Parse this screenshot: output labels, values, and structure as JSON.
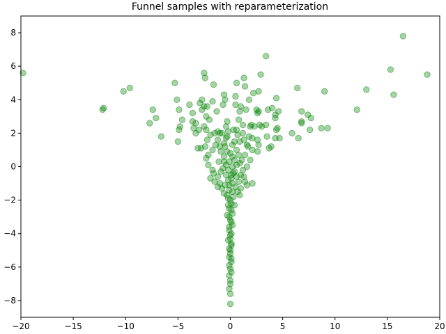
{
  "chart_data": {
    "type": "scatter",
    "title": "Funnel samples with reparameterization",
    "xlabel": "",
    "ylabel": "",
    "xlim": [
      -20,
      20
    ],
    "ylim": [
      -9,
      9
    ],
    "x_ticks": [
      -20,
      -15,
      -10,
      -5,
      0,
      5,
      10,
      15,
      20
    ],
    "x_tick_labels": [
      "−20",
      "−15",
      "−10",
      "−5",
      "0",
      "5",
      "10",
      "15",
      "20"
    ],
    "y_ticks": [
      -8,
      -6,
      -4,
      -2,
      0,
      2,
      4,
      6,
      8
    ],
    "y_tick_labels": [
      "−8",
      "−6",
      "−4",
      "−2",
      "0",
      "2",
      "4",
      "6",
      "8"
    ],
    "grid": false,
    "marker_color": "#008000",
    "marker_alpha": 0.35,
    "series": [
      {
        "points": [
          [
            -19.8,
            5.6
          ],
          [
            16.5,
            7.8
          ],
          [
            15.3,
            5.8
          ],
          [
            18.8,
            5.5
          ],
          [
            15.6,
            4.3
          ],
          [
            13.0,
            4.6
          ],
          [
            12.1,
            3.4
          ],
          [
            9.3,
            2.3
          ],
          [
            8.7,
            2.3
          ],
          [
            9.0,
            4.5
          ],
          [
            7.7,
            2.9
          ],
          [
            7.4,
            3.1
          ],
          [
            6.8,
            3.3
          ],
          [
            6.8,
            2.6
          ],
          [
            6.8,
            2.7
          ],
          [
            7.6,
            2.2
          ],
          [
            6.4,
            4.7
          ],
          [
            6.5,
            1.7
          ],
          [
            5.9,
            2.0
          ],
          [
            3.4,
            6.6
          ],
          [
            2.9,
            5.5
          ],
          [
            1.3,
            5.3
          ],
          [
            0.6,
            5.0
          ],
          [
            1.4,
            4.8
          ],
          [
            2.2,
            4.4
          ],
          [
            2.7,
            4.5
          ],
          [
            4.4,
            4.1
          ],
          [
            1.8,
            4.0
          ],
          [
            -12.2,
            3.4
          ],
          [
            -12.1,
            3.5
          ],
          [
            -10.2,
            4.5
          ],
          [
            -9.6,
            4.7
          ],
          [
            -7.4,
            3.4
          ],
          [
            -7.1,
            2.9
          ],
          [
            -7.7,
            2.6
          ],
          [
            -6.6,
            1.8
          ],
          [
            -5.3,
            5.0
          ],
          [
            -5.1,
            4.0
          ],
          [
            -4.9,
            3.4
          ],
          [
            -4.8,
            2.4
          ],
          [
            -4.6,
            2.8
          ],
          [
            -4.9,
            2.2
          ],
          [
            -5.0,
            1.5
          ],
          [
            -3.9,
            3.7
          ],
          [
            -3.6,
            3.2
          ],
          [
            -3.6,
            2.7
          ],
          [
            -3.3,
            2.6
          ],
          [
            -3.5,
            2.3
          ],
          [
            -3.3,
            2.0
          ],
          [
            -3.0,
            2.2
          ],
          [
            -3.1,
            1.1
          ],
          [
            -2.8,
            1.1
          ],
          [
            -2.5,
            5.6
          ],
          [
            -2.4,
            5.3
          ],
          [
            -1.6,
            4.9
          ],
          [
            -2.7,
            4.0
          ],
          [
            -2.9,
            3.8
          ],
          [
            -2.5,
            3.6
          ],
          [
            -2.2,
            3.6
          ],
          [
            -1.7,
            3.9
          ],
          [
            -2.7,
            3.4
          ],
          [
            -2.3,
            3.0
          ],
          [
            -2.0,
            2.8
          ],
          [
            -2.5,
            2.4
          ],
          [
            -2.3,
            2.2
          ],
          [
            -1.9,
            1.9
          ],
          [
            -2.2,
            1.6
          ],
          [
            -2.4,
            1.2
          ],
          [
            -2.1,
            0.7
          ],
          [
            -2.3,
            0.5
          ],
          [
            -2.1,
            0.1
          ],
          [
            -1.7,
            -0.2
          ],
          [
            -1.9,
            -0.7
          ],
          [
            -1.5,
            -0.9
          ],
          [
            -1.3,
            3.3
          ],
          [
            -1.2,
            2.1
          ],
          [
            -1.4,
            1.3
          ],
          [
            -1.0,
            2.0
          ],
          [
            -0.7,
            3.7
          ],
          [
            -0.6,
            4.3
          ],
          [
            -0.5,
            4.0
          ],
          [
            -0.3,
            2.7
          ],
          [
            -0.8,
            2.0
          ],
          [
            -0.4,
            1.7
          ],
          [
            -0.6,
            1.4
          ],
          [
            -0.2,
            2.1
          ],
          [
            0.3,
            2.2
          ],
          [
            0.5,
            3.7
          ],
          [
            0.5,
            4.2
          ],
          [
            1.0,
            3.6
          ],
          [
            0.9,
            3.3
          ],
          [
            1.5,
            3.4
          ],
          [
            0.8,
            2.8
          ],
          [
            1.2,
            2.5
          ],
          [
            0.6,
            2.2
          ],
          [
            1.9,
            2.4
          ],
          [
            2.0,
            2.5
          ],
          [
            2.3,
            2.4
          ],
          [
            2.5,
            3.4
          ],
          [
            2.6,
            3.2
          ],
          [
            2.7,
            3.3
          ],
          [
            2.8,
            2.5
          ],
          [
            3.0,
            2.4
          ],
          [
            3.4,
            2.5
          ],
          [
            3.6,
            3.4
          ],
          [
            4.0,
            3.5
          ],
          [
            4.3,
            3.1
          ],
          [
            4.6,
            3.3
          ],
          [
            4.3,
            2.9
          ],
          [
            4.5,
            2.3
          ],
          [
            4.4,
            2.2
          ],
          [
            3.5,
            1.8
          ],
          [
            4.3,
            1.7
          ],
          [
            4.7,
            1.7
          ],
          [
            2.1,
            1.7
          ],
          [
            2.6,
            1.6
          ],
          [
            2.7,
            1.3
          ],
          [
            2.6,
            0.9
          ],
          [
            3.7,
            1.1
          ],
          [
            3.9,
            1.2
          ],
          [
            1.7,
            1.2
          ],
          [
            1.6,
            1.3
          ],
          [
            2.1,
            1.0
          ],
          [
            1.4,
            0.7
          ],
          [
            1.9,
            0.4
          ],
          [
            1.6,
            0.0
          ],
          [
            1.2,
            -0.2
          ],
          [
            1.0,
            -0.5
          ],
          [
            1.4,
            -0.9
          ],
          [
            1.6,
            -1.1
          ],
          [
            2.1,
            -1.0
          ],
          [
            1.0,
            -1.3
          ],
          [
            0.9,
            -1.7
          ],
          [
            -1.2,
            1.6
          ],
          [
            -1.0,
            1.2
          ],
          [
            -0.5,
            1.2
          ],
          [
            -0.9,
            0.9
          ],
          [
            -0.6,
            0.6
          ],
          [
            -0.3,
            0.9
          ],
          [
            0.2,
            1.3
          ],
          [
            0.4,
            1.5
          ],
          [
            0.6,
            1.0
          ],
          [
            0.8,
            0.7
          ],
          [
            0.4,
            0.4
          ],
          [
            0.2,
            0.6
          ],
          [
            -0.1,
            0.3
          ],
          [
            -0.4,
            0.1
          ],
          [
            -0.7,
            -0.1
          ],
          [
            -0.9,
            -0.3
          ],
          [
            -1.2,
            -0.6
          ],
          [
            -1.0,
            -1.0
          ],
          [
            -1.2,
            -1.2
          ],
          [
            -0.8,
            -1.3
          ],
          [
            -0.5,
            -1.1
          ],
          [
            -0.2,
            -0.8
          ],
          [
            0.1,
            -0.5
          ],
          [
            0.4,
            -0.3
          ],
          [
            0.6,
            -0.6
          ],
          [
            0.8,
            -0.9
          ],
          [
            0.5,
            -1.2
          ],
          [
            0.2,
            -1.0
          ],
          [
            -0.1,
            -1.4
          ],
          [
            -0.3,
            -1.7
          ],
          [
            0.0,
            -2.0
          ],
          [
            0.3,
            -1.8
          ],
          [
            0.4,
            -2.3
          ],
          [
            0.1,
            -2.6
          ],
          [
            -0.2,
            -2.3
          ],
          [
            -0.3,
            -2.9
          ],
          [
            0.0,
            -3.2
          ],
          [
            0.2,
            -3.5
          ],
          [
            -0.1,
            -3.8
          ],
          [
            0.0,
            -4.1
          ],
          [
            -0.2,
            -4.4
          ],
          [
            0.1,
            -4.7
          ],
          [
            0.0,
            -5.0
          ],
          [
            -0.1,
            -5.4
          ],
          [
            0.1,
            -5.7
          ],
          [
            0.0,
            -6.1
          ],
          [
            -0.1,
            -6.5
          ],
          [
            0.0,
            -6.8
          ],
          [
            0.0,
            -7.0
          ],
          [
            -0.1,
            -7.3
          ],
          [
            0.0,
            -7.6
          ],
          [
            0.0,
            -8.2
          ],
          [
            0.2,
            0.0
          ],
          [
            -0.2,
            -0.2
          ],
          [
            0.3,
            -0.4
          ],
          [
            -0.4,
            -0.5
          ],
          [
            0.1,
            -0.7
          ],
          [
            -0.1,
            -1.1
          ],
          [
            0.2,
            -1.5
          ],
          [
            -0.2,
            -1.9
          ],
          [
            0.1,
            -2.2
          ],
          [
            -0.1,
            -2.5
          ],
          [
            0.2,
            -2.8
          ],
          [
            -0.1,
            -3.0
          ],
          [
            0.1,
            -3.3
          ],
          [
            -0.1,
            -3.6
          ],
          [
            0.1,
            -4.0
          ],
          [
            0.0,
            -4.3
          ],
          [
            0.1,
            -4.6
          ],
          [
            -0.1,
            -4.9
          ],
          [
            0.0,
            -5.2
          ],
          [
            0.1,
            -5.5
          ],
          [
            -0.1,
            -5.9
          ],
          [
            0.1,
            -6.3
          ],
          [
            0.7,
            1.9
          ],
          [
            -0.4,
            2.4
          ],
          [
            1.2,
            2.0
          ],
          [
            1.3,
            1.6
          ],
          [
            1.8,
            1.8
          ],
          [
            0.9,
            1.5
          ],
          [
            -1.5,
            2.0
          ],
          [
            -1.7,
            1.0
          ],
          [
            -0.6,
            0.3
          ],
          [
            0.9,
            0.2
          ],
          [
            1.1,
            0.4
          ],
          [
            -1.1,
            0.3
          ],
          [
            -1.6,
            -0.4
          ],
          [
            1.3,
            -0.6
          ],
          [
            0.7,
            -1.5
          ],
          [
            -0.6,
            -1.6
          ],
          [
            0.6,
            0.1
          ],
          [
            -0.3,
            1.8
          ],
          [
            0.0,
            0.8
          ]
        ]
      }
    ]
  }
}
